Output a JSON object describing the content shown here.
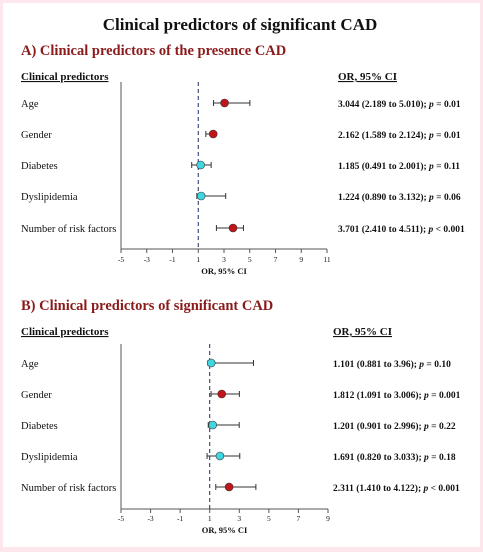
{
  "figure_title": "Clinical predictors of significant CAD",
  "colors": {
    "panel_title": "#8b1a1a",
    "significant": "#c0151b",
    "non_significant": "#3fd6e0",
    "text": "#111111",
    "frame_bg": "#fde6ec"
  },
  "chart_data": [
    {
      "type": "forest",
      "title": "A) Clinical predictors of the presence CAD",
      "column_left_header": "Clinical predictors",
      "column_right_header": "OR, 95% CI",
      "xlabel": "OR, 95% CI",
      "xlim": [
        -5,
        11
      ],
      "x_ticks": [
        "-5",
        "-3",
        "-1",
        "1",
        "3",
        "5",
        "7",
        "9",
        "11"
      ],
      "reference_line": 1,
      "rows": [
        {
          "label": "Age",
          "or": 3.044,
          "lower": 2.189,
          "upper": 5.01,
          "significant": true,
          "text_main": "3.044 (2.189 to 5.010); ",
          "p_prefix": "p",
          "p_rest": " = 0.01"
        },
        {
          "label": "Gender",
          "or": 2.162,
          "lower": 1.589,
          "upper": 2.124,
          "significant": true,
          "text_main": "2.162 (1.589 to 2.124); ",
          "p_prefix": "p",
          "p_rest": " = 0.01"
        },
        {
          "label": "Diabetes",
          "or": 1.185,
          "lower": 0.491,
          "upper": 2.001,
          "significant": false,
          "text_main": "1.185 (0.491 to 2.001); ",
          "p_prefix": "p",
          "p_rest": " = 0.11"
        },
        {
          "label": "Dyslipidemia",
          "or": 1.224,
          "lower": 0.89,
          "upper": 3.132,
          "significant": false,
          "text_main": "1.224 (0.890 to 3.132); ",
          "p_prefix": "p",
          "p_rest": " = 0.06"
        },
        {
          "label": "Number of risk factors",
          "or": 3.701,
          "lower": 2.41,
          "upper": 4.511,
          "significant": true,
          "text_main": "3.701 (2.410 to 4.511); ",
          "p_prefix": "p",
          "p_rest": " < 0.001"
        }
      ]
    },
    {
      "type": "forest",
      "title": "B) Clinical predictors of significant CAD",
      "column_left_header": "Clinical predictors",
      "column_right_header": "OR, 95% CI",
      "xlabel": "OR, 95% CI",
      "xlim": [
        -5,
        9
      ],
      "x_ticks": [
        "-5",
        "-3",
        "-1",
        "1",
        "3",
        "5",
        "7",
        "9"
      ],
      "reference_line": 1,
      "rows": [
        {
          "label": "Age",
          "or": 1.101,
          "lower": 0.881,
          "upper": 3.96,
          "significant": false,
          "text_main": "1.101 (0.881 to 3.96); ",
          "p_prefix": "p",
          "p_rest": " = 0.10"
        },
        {
          "label": "Gender",
          "or": 1.812,
          "lower": 1.091,
          "upper": 3.006,
          "significant": true,
          "text_main": "1.812 (1.091 to 3.006); ",
          "p_prefix": "p",
          "p_rest": " = 0.001"
        },
        {
          "label": "Diabetes",
          "or": 1.201,
          "lower": 0.901,
          "upper": 2.996,
          "significant": false,
          "text_main": "1.201 (0.901 to 2.996); ",
          "p_prefix": "p",
          "p_rest": " = 0.22"
        },
        {
          "label": "Dyslipidemia",
          "or": 1.691,
          "lower": 0.82,
          "upper": 3.033,
          "significant": false,
          "text_main": "1.691 (0.820 to 3.033); ",
          "p_prefix": "p",
          "p_rest": " = 0.18"
        },
        {
          "label": "Number of risk factors",
          "or": 2.311,
          "lower": 1.41,
          "upper": 4.122,
          "significant": true,
          "text_main": "2.311 (1.410 to 4.122); ",
          "p_prefix": "p",
          "p_rest": " < 0.001"
        }
      ]
    }
  ]
}
